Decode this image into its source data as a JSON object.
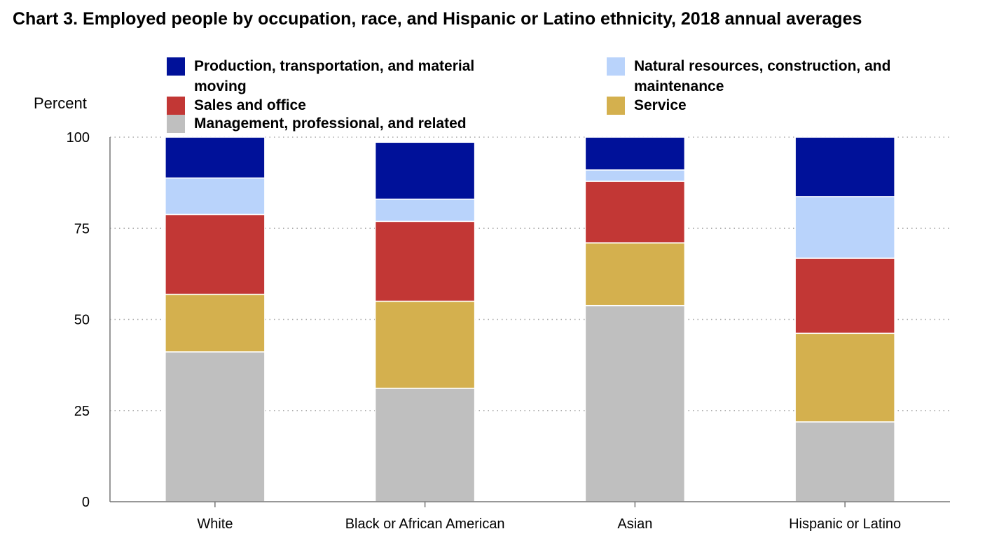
{
  "chart_data": {
    "type": "bar",
    "stacked": true,
    "title": "Chart 3. Employed people by occupation, race, and Hispanic or Latino ethnicity, 2018 annual averages",
    "ylabel": "Percent",
    "xlabel": "",
    "ylim": [
      0,
      100
    ],
    "yticks": [
      0,
      25,
      50,
      75,
      100
    ],
    "grid": true,
    "legend_position": "top",
    "categories": [
      "White",
      "Black or African American",
      "Asian",
      "Hispanic or Latino"
    ],
    "series": [
      {
        "name": "Management, professional, and related",
        "color": "#bfbfbf",
        "values": [
          41.1,
          31.1,
          53.8,
          21.9
        ]
      },
      {
        "name": "Service",
        "color": "#d4b04e",
        "values": [
          15.8,
          23.9,
          17.2,
          24.3
        ]
      },
      {
        "name": "Sales and office",
        "color": "#c23735",
        "values": [
          21.9,
          21.9,
          16.9,
          20.6
        ]
      },
      {
        "name": "Natural resources, construction, and maintenance",
        "color": "#b9d3fb",
        "values": [
          10.0,
          6.1,
          3.1,
          16.9
        ]
      },
      {
        "name": "Production, transportation, and material moving",
        "color": "#001199",
        "values": [
          11.2,
          15.6,
          9.0,
          16.3
        ]
      }
    ]
  },
  "legend": [
    {
      "label": "Production, transportation, and material moving",
      "color": "#001199"
    },
    {
      "label": "Natural resources, construction, and maintenance",
      "color": "#b9d3fb"
    },
    {
      "label": "Sales and office",
      "color": "#c23735"
    },
    {
      "label": "Service",
      "color": "#d4b04e"
    },
    {
      "label": "Management, professional, and related",
      "color": "#bfbfbf"
    }
  ]
}
